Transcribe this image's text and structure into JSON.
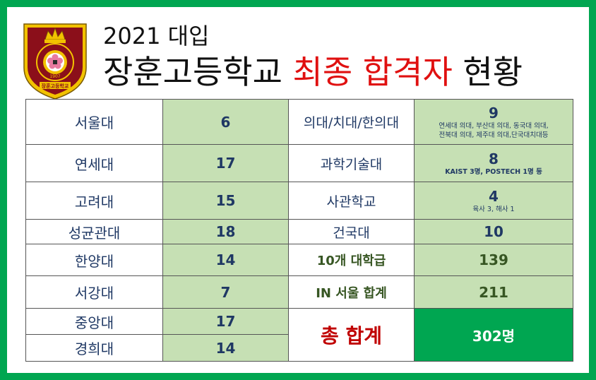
{
  "header": {
    "subtitle": "2021 대입",
    "title_part1": "장훈고등학교 ",
    "title_part2": "최종 합격자",
    "title_part3": " 현황"
  },
  "logo": {
    "school_text": "장훈고등학교",
    "year": "1907",
    "arc_text": "JANGHOON HIGH SCHOOL"
  },
  "rows": [
    {
      "uni": "서울대",
      "count": "6",
      "label2": "의대/치대/한의대",
      "value2": "9",
      "note2": "연세대 의대, 부산대 의대, 동국대 의대,",
      "note2b": "전북대 의대, 제주대 의대,단국대치대등"
    },
    {
      "uni": "연세대",
      "count": "17",
      "label2": "과학기술대",
      "value2": "8",
      "note2": "KAIST 3명, POSTECH 1명 등"
    },
    {
      "uni": "고려대",
      "count": "15",
      "label2": "사관학교",
      "value2": "4",
      "note2": "육사 3, 해사 1"
    },
    {
      "uni": "성균관대",
      "count": "18",
      "label2": "건국대",
      "value2": "10"
    },
    {
      "uni": "한양대",
      "count": "14",
      "label2": "10개 대학급",
      "value2": "139"
    },
    {
      "uni": "서강대",
      "count": "7",
      "label2": "IN 서울 합계",
      "value2": "211"
    },
    {
      "uni": "중앙대",
      "count": "17"
    },
    {
      "uni": "경희대",
      "count": "14"
    }
  ],
  "total": {
    "label": "총 합계",
    "value": "302명"
  },
  "colors": {
    "border": "#00a651",
    "cell_green": "#c6e0b4",
    "total_green": "#00a651",
    "accent_red": "#e01010",
    "navy": "#1f3864"
  }
}
